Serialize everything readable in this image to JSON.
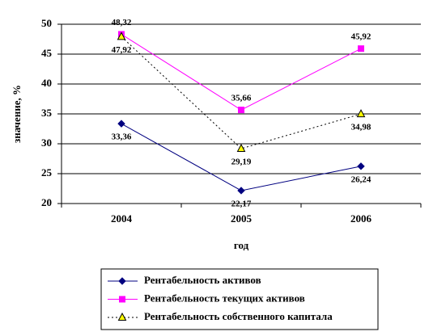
{
  "chart_data": {
    "type": "line",
    "categories": [
      "2004",
      "2005",
      "2006"
    ],
    "series": [
      {
        "name": "Рентабельность активов",
        "color": "#000080",
        "marker": "diamond",
        "dash": "solid",
        "values": [
          33.36,
          22.17,
          26.24
        ],
        "value_labels": [
          "33,36",
          "22,17",
          "26,24"
        ]
      },
      {
        "name": "Рентабельность текущих активов",
        "color": "#ff00ff",
        "marker": "square",
        "dash": "solid",
        "values": [
          48.32,
          35.66,
          45.92
        ],
        "value_labels": [
          "48,32",
          "35,66",
          "45,92"
        ]
      },
      {
        "name": "Рентабельность собственного капитала",
        "color": "#000000",
        "marker": "triangle",
        "dash": "dotted",
        "values": [
          47.92,
          29.19,
          34.98
        ],
        "value_labels": [
          "47,92",
          "29,19",
          "34,98"
        ]
      }
    ],
    "x_label": "год",
    "y_label": "значение, %",
    "ylim": [
      20,
      50
    ],
    "yticks": [
      20,
      25,
      30,
      35,
      40,
      45,
      50
    ],
    "grid": true
  }
}
